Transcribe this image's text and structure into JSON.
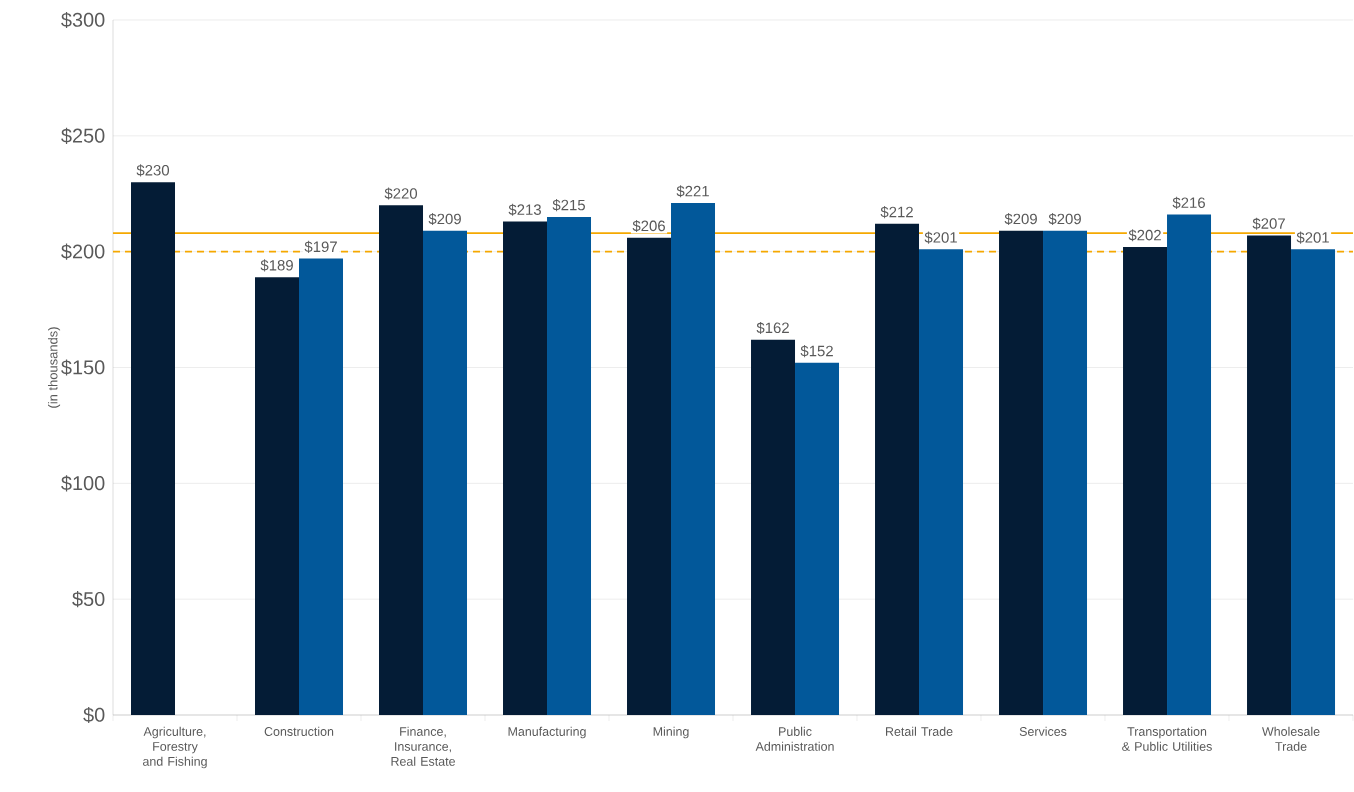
{
  "chart_data": {
    "type": "bar",
    "ylabel": "(in thousands)",
    "categories": [
      "Agriculture, Forestry and Fishing",
      "Construction",
      "Finance, Insurance, Real Estate",
      "Manufacturing",
      "Mining",
      "Public Administration",
      "Retail Trade",
      "Services",
      "Transportation & Public Utilities",
      "Wholesale Trade"
    ],
    "series": [
      {
        "color": "#041c36",
        "values": [
          230,
          189,
          220,
          213,
          206,
          162,
          212,
          209,
          202,
          207
        ],
        "value_labels": [
          "$230",
          "$189",
          "$220",
          "$213",
          "$206",
          "$162",
          "$212",
          "$209",
          "$202",
          "$207"
        ]
      },
      {
        "color": "#02589a",
        "values": [
          null,
          197,
          209,
          215,
          221,
          152,
          201,
          209,
          216,
          201
        ],
        "value_labels": [
          null,
          "$197",
          "$209",
          "$215",
          "$221",
          "$152",
          "$201",
          "$209",
          "$216",
          "$201"
        ]
      }
    ],
    "ylim": [
      0,
      300
    ],
    "yticks": [
      {
        "value": 0,
        "label": "$0"
      },
      {
        "value": 50,
        "label": "$50"
      },
      {
        "value": 100,
        "label": "$100"
      },
      {
        "value": 150,
        "label": "$150"
      },
      {
        "value": 200,
        "label": "$200"
      },
      {
        "value": 250,
        "label": "$250"
      },
      {
        "value": 300,
        "label": "$300"
      }
    ],
    "grid": "y",
    "ref_lines": [
      {
        "axis": "y",
        "value": 208,
        "color": "#f5a800",
        "line_style": "solid"
      },
      {
        "axis": "y",
        "value": 200,
        "color": "#f5a800",
        "line_style": "dashed"
      }
    ]
  }
}
